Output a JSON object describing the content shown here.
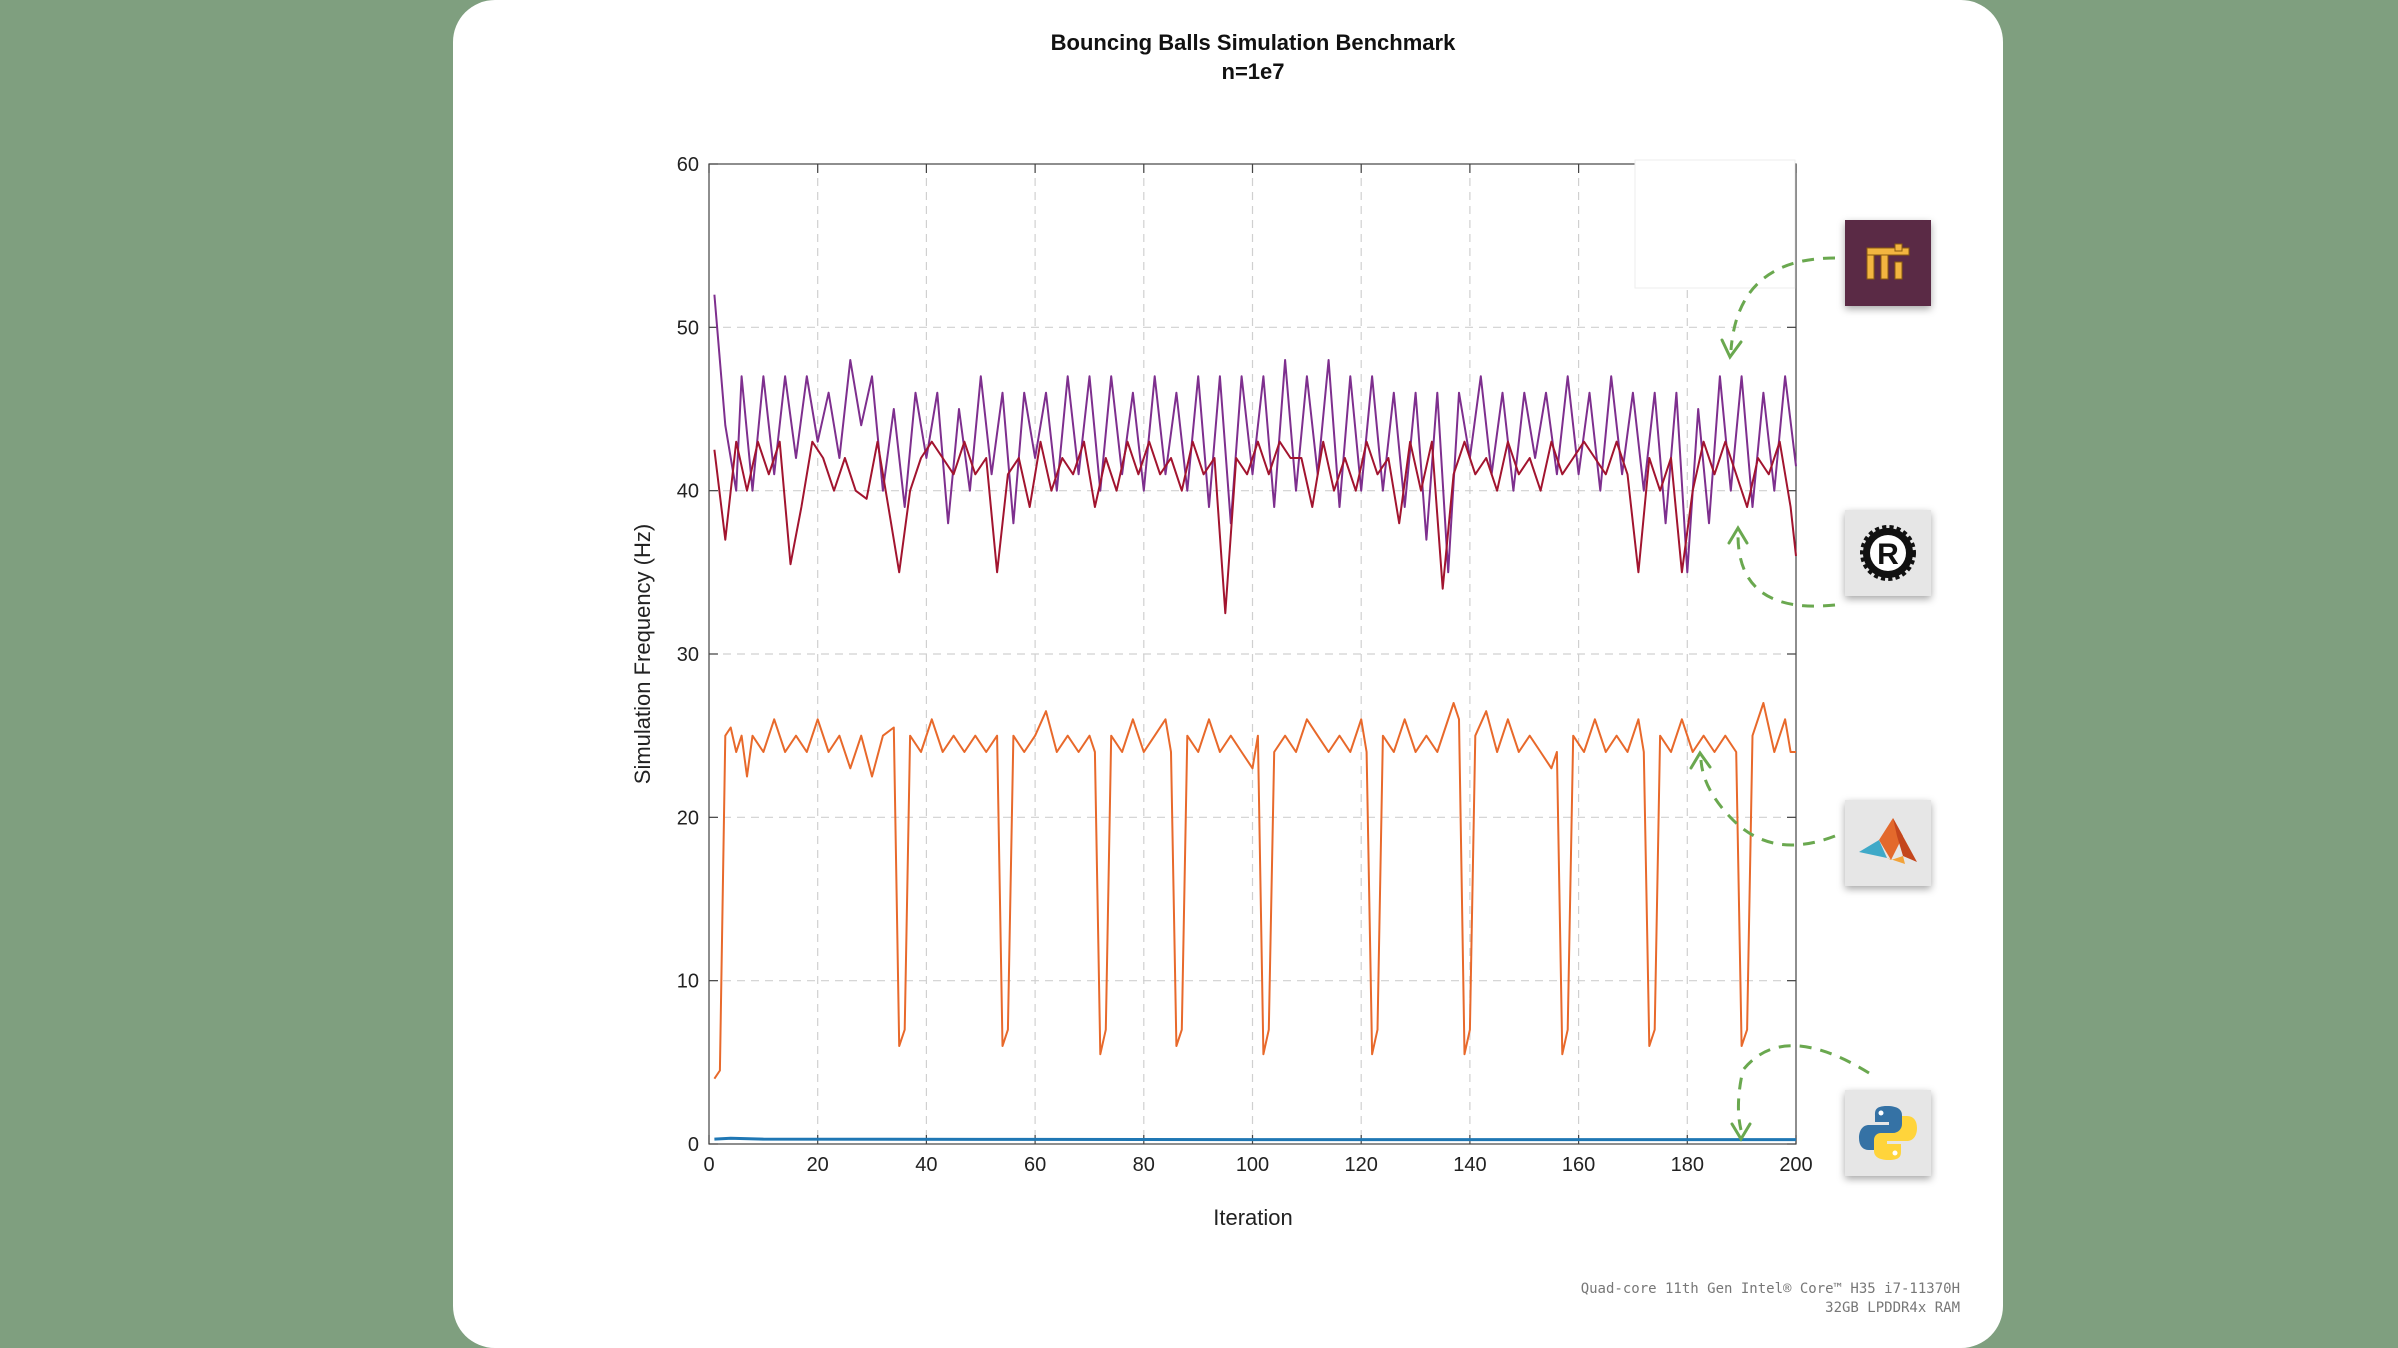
{
  "chart_data": {
    "type": "line",
    "title": "Bouncing Balls Simulation Benchmark",
    "subtitle": "n=1e7",
    "xlabel": "Iteration",
    "ylabel": "Simulation Frequency (Hz)",
    "xlim": [
      0,
      200
    ],
    "ylim": [
      0,
      60
    ],
    "xticks": [
      0,
      20,
      40,
      60,
      80,
      100,
      120,
      140,
      160,
      180,
      200
    ],
    "yticks": [
      0,
      10,
      20,
      30,
      40,
      50,
      60
    ],
    "grid": true,
    "series": [
      {
        "icon": "taichi-logo-icon",
        "color": "#7e2f8e",
        "keypoints": [
          [
            1,
            52
          ],
          [
            3,
            44
          ],
          [
            5,
            40
          ],
          [
            6,
            47
          ],
          [
            8,
            40
          ],
          [
            10,
            47
          ],
          [
            12,
            41
          ],
          [
            14,
            47
          ],
          [
            16,
            42
          ],
          [
            18,
            47
          ],
          [
            20,
            43
          ],
          [
            22,
            46
          ],
          [
            24,
            42
          ],
          [
            26,
            48
          ],
          [
            28,
            44
          ],
          [
            30,
            47
          ],
          [
            32,
            40
          ],
          [
            34,
            45
          ],
          [
            36,
            39
          ],
          [
            38,
            46
          ],
          [
            40,
            42
          ],
          [
            42,
            46
          ],
          [
            44,
            38
          ],
          [
            46,
            45
          ],
          [
            48,
            40
          ],
          [
            50,
            47
          ],
          [
            52,
            41
          ],
          [
            54,
            46
          ],
          [
            56,
            38
          ],
          [
            58,
            46
          ],
          [
            60,
            42
          ],
          [
            62,
            46
          ],
          [
            64,
            40
          ],
          [
            66,
            47
          ],
          [
            68,
            41
          ],
          [
            70,
            47
          ],
          [
            72,
            40
          ],
          [
            74,
            47
          ],
          [
            76,
            41
          ],
          [
            78,
            46
          ],
          [
            80,
            40
          ],
          [
            82,
            47
          ],
          [
            84,
            41
          ],
          [
            86,
            46
          ],
          [
            88,
            40
          ],
          [
            90,
            47
          ],
          [
            92,
            39
          ],
          [
            94,
            47
          ],
          [
            96,
            38
          ],
          [
            98,
            47
          ],
          [
            100,
            41
          ],
          [
            102,
            47
          ],
          [
            104,
            39
          ],
          [
            106,
            48
          ],
          [
            108,
            40
          ],
          [
            110,
            47
          ],
          [
            112,
            41
          ],
          [
            114,
            48
          ],
          [
            116,
            39
          ],
          [
            118,
            47
          ],
          [
            120,
            40
          ],
          [
            122,
            47
          ],
          [
            124,
            40
          ],
          [
            126,
            46
          ],
          [
            128,
            39
          ],
          [
            130,
            46
          ],
          [
            132,
            37
          ],
          [
            134,
            46
          ],
          [
            136,
            35
          ],
          [
            138,
            46
          ],
          [
            140,
            42
          ],
          [
            142,
            47
          ],
          [
            144,
            41
          ],
          [
            146,
            46
          ],
          [
            148,
            40
          ],
          [
            150,
            46
          ],
          [
            152,
            42
          ],
          [
            154,
            46
          ],
          [
            156,
            41
          ],
          [
            158,
            47
          ],
          [
            160,
            41
          ],
          [
            162,
            46
          ],
          [
            164,
            40
          ],
          [
            166,
            47
          ],
          [
            168,
            41
          ],
          [
            170,
            46
          ],
          [
            172,
            40
          ],
          [
            174,
            46
          ],
          [
            176,
            38
          ],
          [
            178,
            46
          ],
          [
            180,
            35
          ],
          [
            182,
            45
          ],
          [
            184,
            38
          ],
          [
            186,
            47
          ],
          [
            188,
            40
          ],
          [
            190,
            47
          ],
          [
            192,
            39
          ],
          [
            194,
            46
          ],
          [
            196,
            40
          ],
          [
            198,
            47
          ],
          [
            200,
            41.5
          ]
        ]
      },
      {
        "icon": "rust-logo-icon",
        "color": "#a2142f",
        "keypoints": [
          [
            1,
            42.5
          ],
          [
            3,
            37
          ],
          [
            5,
            43
          ],
          [
            7,
            40
          ],
          [
            9,
            43
          ],
          [
            11,
            41
          ],
          [
            13,
            43
          ],
          [
            15,
            35.5
          ],
          [
            17,
            39
          ],
          [
            19,
            43
          ],
          [
            21,
            42
          ],
          [
            23,
            40
          ],
          [
            25,
            42
          ],
          [
            27,
            40
          ],
          [
            29,
            39.5
          ],
          [
            31,
            43
          ],
          [
            33,
            39
          ],
          [
            35,
            35
          ],
          [
            37,
            40
          ],
          [
            39,
            42
          ],
          [
            41,
            43
          ],
          [
            43,
            42
          ],
          [
            45,
            41
          ],
          [
            47,
            43
          ],
          [
            49,
            41
          ],
          [
            51,
            42
          ],
          [
            53,
            35
          ],
          [
            55,
            41
          ],
          [
            57,
            42
          ],
          [
            59,
            39
          ],
          [
            61,
            43
          ],
          [
            63,
            40
          ],
          [
            65,
            42
          ],
          [
            67,
            41
          ],
          [
            69,
            43
          ],
          [
            71,
            39
          ],
          [
            73,
            42
          ],
          [
            75,
            40
          ],
          [
            77,
            43
          ],
          [
            79,
            41
          ],
          [
            81,
            43
          ],
          [
            83,
            41
          ],
          [
            85,
            42
          ],
          [
            87,
            40
          ],
          [
            89,
            43
          ],
          [
            91,
            41
          ],
          [
            93,
            42
          ],
          [
            95,
            32.5
          ],
          [
            97,
            42
          ],
          [
            99,
            41
          ],
          [
            101,
            43
          ],
          [
            103,
            41
          ],
          [
            105,
            43
          ],
          [
            107,
            42
          ],
          [
            109,
            42
          ],
          [
            111,
            39
          ],
          [
            113,
            43
          ],
          [
            115,
            40
          ],
          [
            117,
            42
          ],
          [
            119,
            40
          ],
          [
            121,
            43
          ],
          [
            123,
            41
          ],
          [
            125,
            42
          ],
          [
            127,
            38
          ],
          [
            129,
            43
          ],
          [
            131,
            40
          ],
          [
            133,
            43
          ],
          [
            135,
            34
          ],
          [
            137,
            41
          ],
          [
            139,
            43
          ],
          [
            141,
            41
          ],
          [
            143,
            42
          ],
          [
            145,
            40
          ],
          [
            147,
            43
          ],
          [
            149,
            41
          ],
          [
            151,
            42
          ],
          [
            153,
            40
          ],
          [
            155,
            43
          ],
          [
            157,
            41
          ],
          [
            159,
            42
          ],
          [
            161,
            43
          ],
          [
            163,
            42
          ],
          [
            165,
            41
          ],
          [
            167,
            43
          ],
          [
            169,
            41
          ],
          [
            171,
            35
          ],
          [
            173,
            42
          ],
          [
            175,
            40
          ],
          [
            177,
            42
          ],
          [
            179,
            35
          ],
          [
            181,
            40
          ],
          [
            183,
            43
          ],
          [
            185,
            41
          ],
          [
            187,
            43
          ],
          [
            189,
            41
          ],
          [
            191,
            39
          ],
          [
            193,
            42
          ],
          [
            195,
            41
          ],
          [
            197,
            43
          ],
          [
            199,
            39
          ],
          [
            200,
            36
          ]
        ]
      },
      {
        "icon": "matlab-logo-icon",
        "color": "#e8692b",
        "keypoints": [
          [
            1,
            4
          ],
          [
            2,
            4.5
          ],
          [
            3,
            25
          ],
          [
            4,
            25.5
          ],
          [
            5,
            24
          ],
          [
            6,
            25
          ],
          [
            7,
            22.5
          ],
          [
            8,
            25
          ],
          [
            10,
            24
          ],
          [
            12,
            26
          ],
          [
            14,
            24
          ],
          [
            16,
            25
          ],
          [
            18,
            24
          ],
          [
            20,
            26
          ],
          [
            22,
            24
          ],
          [
            24,
            25
          ],
          [
            26,
            23
          ],
          [
            28,
            25
          ],
          [
            30,
            22.5
          ],
          [
            32,
            25
          ],
          [
            34,
            25.5
          ],
          [
            35,
            6
          ],
          [
            36,
            7
          ],
          [
            37,
            25
          ],
          [
            39,
            24
          ],
          [
            41,
            26
          ],
          [
            43,
            24
          ],
          [
            45,
            25
          ],
          [
            47,
            24
          ],
          [
            49,
            25
          ],
          [
            51,
            24
          ],
          [
            53,
            25
          ],
          [
            54,
            6
          ],
          [
            55,
            7
          ],
          [
            56,
            25
          ],
          [
            58,
            24
          ],
          [
            60,
            25
          ],
          [
            62,
            26.5
          ],
          [
            64,
            24
          ],
          [
            66,
            25
          ],
          [
            68,
            24
          ],
          [
            70,
            25
          ],
          [
            71,
            24
          ],
          [
            72,
            5.5
          ],
          [
            73,
            7
          ],
          [
            74,
            25
          ],
          [
            76,
            24
          ],
          [
            78,
            26
          ],
          [
            80,
            24
          ],
          [
            82,
            25
          ],
          [
            84,
            26
          ],
          [
            85,
            24
          ],
          [
            86,
            6
          ],
          [
            87,
            7
          ],
          [
            88,
            25
          ],
          [
            90,
            24
          ],
          [
            92,
            26
          ],
          [
            94,
            24
          ],
          [
            96,
            25
          ],
          [
            98,
            24
          ],
          [
            100,
            23
          ],
          [
            101,
            25
          ],
          [
            102,
            5.5
          ],
          [
            103,
            7
          ],
          [
            104,
            24
          ],
          [
            106,
            25
          ],
          [
            108,
            24
          ],
          [
            110,
            26
          ],
          [
            112,
            25
          ],
          [
            114,
            24
          ],
          [
            116,
            25
          ],
          [
            118,
            24
          ],
          [
            120,
            26
          ],
          [
            121,
            24
          ],
          [
            122,
            5.5
          ],
          [
            123,
            7
          ],
          [
            124,
            25
          ],
          [
            126,
            24
          ],
          [
            128,
            26
          ],
          [
            130,
            24
          ],
          [
            132,
            25
          ],
          [
            134,
            24
          ],
          [
            137,
            27
          ],
          [
            138,
            26
          ],
          [
            139,
            5.5
          ],
          [
            140,
            7
          ],
          [
            141,
            25
          ],
          [
            143,
            26.5
          ],
          [
            145,
            24
          ],
          [
            147,
            26
          ],
          [
            149,
            24
          ],
          [
            151,
            25
          ],
          [
            153,
            24
          ],
          [
            155,
            23
          ],
          [
            156,
            24
          ],
          [
            157,
            5.5
          ],
          [
            158,
            7
          ],
          [
            159,
            25
          ],
          [
            161,
            24
          ],
          [
            163,
            26
          ],
          [
            165,
            24
          ],
          [
            167,
            25
          ],
          [
            169,
            24
          ],
          [
            171,
            26
          ],
          [
            172,
            24
          ],
          [
            173,
            6
          ],
          [
            174,
            7
          ],
          [
            175,
            25
          ],
          [
            177,
            24
          ],
          [
            179,
            26
          ],
          [
            181,
            24
          ],
          [
            183,
            25
          ],
          [
            185,
            24
          ],
          [
            187,
            25
          ],
          [
            189,
            24
          ],
          [
            190,
            6
          ],
          [
            191,
            7
          ],
          [
            192,
            25
          ],
          [
            194,
            27
          ],
          [
            196,
            24
          ],
          [
            198,
            26
          ],
          [
            199,
            24
          ],
          [
            200,
            24
          ]
        ]
      },
      {
        "icon": "python-logo-icon",
        "color": "#1f77b4",
        "keypoints": [
          [
            1,
            0.3
          ],
          [
            4,
            0.35
          ],
          [
            10,
            0.3
          ],
          [
            50,
            0.28
          ],
          [
            100,
            0.27
          ],
          [
            150,
            0.27
          ],
          [
            200,
            0.27
          ]
        ]
      }
    ]
  },
  "footnote": {
    "line1": "Quad-core 11th Gen Intel® Core™ H35 i7-11370H",
    "line2": "32GB LPDDR4x RAM"
  }
}
